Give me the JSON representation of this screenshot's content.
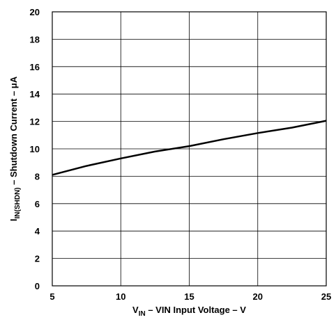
{
  "chart_data": {
    "type": "line",
    "xlabel": {
      "main": "V",
      "sub": "IN",
      "rest": " – VIN Input Voltage – V"
    },
    "ylabel": {
      "main": "I",
      "sub": "IN(SHDN)",
      "rest": " – Shutdown Current – μA"
    },
    "xlim": [
      5,
      25
    ],
    "ylim": [
      0,
      20
    ],
    "x_ticks": [
      5,
      10,
      15,
      20,
      25
    ],
    "y_ticks": [
      0,
      2,
      4,
      6,
      8,
      10,
      12,
      14,
      16,
      18,
      20
    ],
    "grid": true,
    "series": [
      {
        "color": "#000000",
        "x": [
          5,
          7.5,
          10,
          12.5,
          15,
          17.5,
          20,
          22.5,
          25
        ],
        "y": [
          8.1,
          8.75,
          9.3,
          9.8,
          10.2,
          10.7,
          11.15,
          11.55,
          12.05
        ]
      }
    ]
  }
}
